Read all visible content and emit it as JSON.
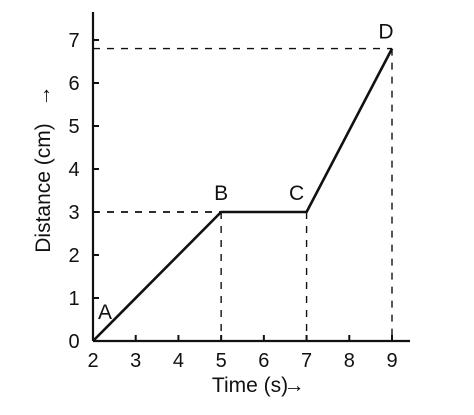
{
  "chart_data": {
    "type": "line",
    "title": "",
    "xlabel": "Time (s)",
    "ylabel": "Distance (cm)",
    "xlabel_arrow": "→",
    "ylabel_arrow": "→",
    "x_ticks": [
      "2",
      "3",
      "4",
      "5",
      "6",
      "7",
      "8",
      "9"
    ],
    "y_ticks": [
      "0",
      "1",
      "2",
      "3",
      "4",
      "5",
      "6",
      "7"
    ],
    "xlim": [
      2,
      9
    ],
    "ylim": [
      0,
      7
    ],
    "grid": false,
    "series": [
      {
        "x": [
          2,
          5,
          7,
          9
        ],
        "y": [
          0,
          3,
          3,
          6.8
        ]
      }
    ],
    "points": [
      {
        "label": "A",
        "x": 2,
        "y": 0
      },
      {
        "label": "B",
        "x": 5,
        "y": 3
      },
      {
        "label": "C",
        "x": 7,
        "y": 3
      },
      {
        "label": "D",
        "x": 9,
        "y": 6.8
      }
    ],
    "guide_lines": true,
    "colors": {
      "ink": "#111111",
      "background": "#ffffff"
    }
  }
}
